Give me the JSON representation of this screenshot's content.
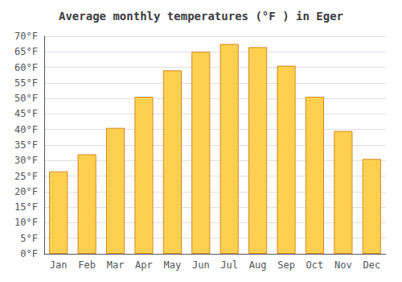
{
  "chart_data": {
    "type": "bar",
    "title": "Average monthly temperatures (°F ) in Eger",
    "categories": [
      "Jan",
      "Feb",
      "Mar",
      "Apr",
      "May",
      "Jun",
      "Jul",
      "Aug",
      "Sep",
      "Oct",
      "Nov",
      "Dec"
    ],
    "values": [
      26.5,
      32.0,
      40.5,
      50.5,
      59.0,
      65.0,
      67.5,
      66.5,
      60.5,
      50.5,
      39.5,
      30.5
    ],
    "color": "#FFD050",
    "ylim": [
      0,
      70
    ],
    "yticks": [
      {
        "value": 0,
        "label": "0°F"
      },
      {
        "value": 5,
        "label": "5°F"
      },
      {
        "value": 10,
        "label": "10°F"
      },
      {
        "value": 15,
        "label": "15°F"
      },
      {
        "value": 20,
        "label": "20°F"
      },
      {
        "value": 25,
        "label": "25°F"
      },
      {
        "value": 30,
        "label": "30°F"
      },
      {
        "value": 35,
        "label": "35°F"
      },
      {
        "value": 40,
        "label": "40°F"
      },
      {
        "value": 45,
        "label": "45°F"
      },
      {
        "value": 50,
        "label": "50°F"
      },
      {
        "value": 55,
        "label": "55°F"
      },
      {
        "value": 60,
        "label": "60°F"
      },
      {
        "value": 65,
        "label": "65°F"
      },
      {
        "value": 70,
        "label": "70°F"
      }
    ],
    "grid": true
  }
}
